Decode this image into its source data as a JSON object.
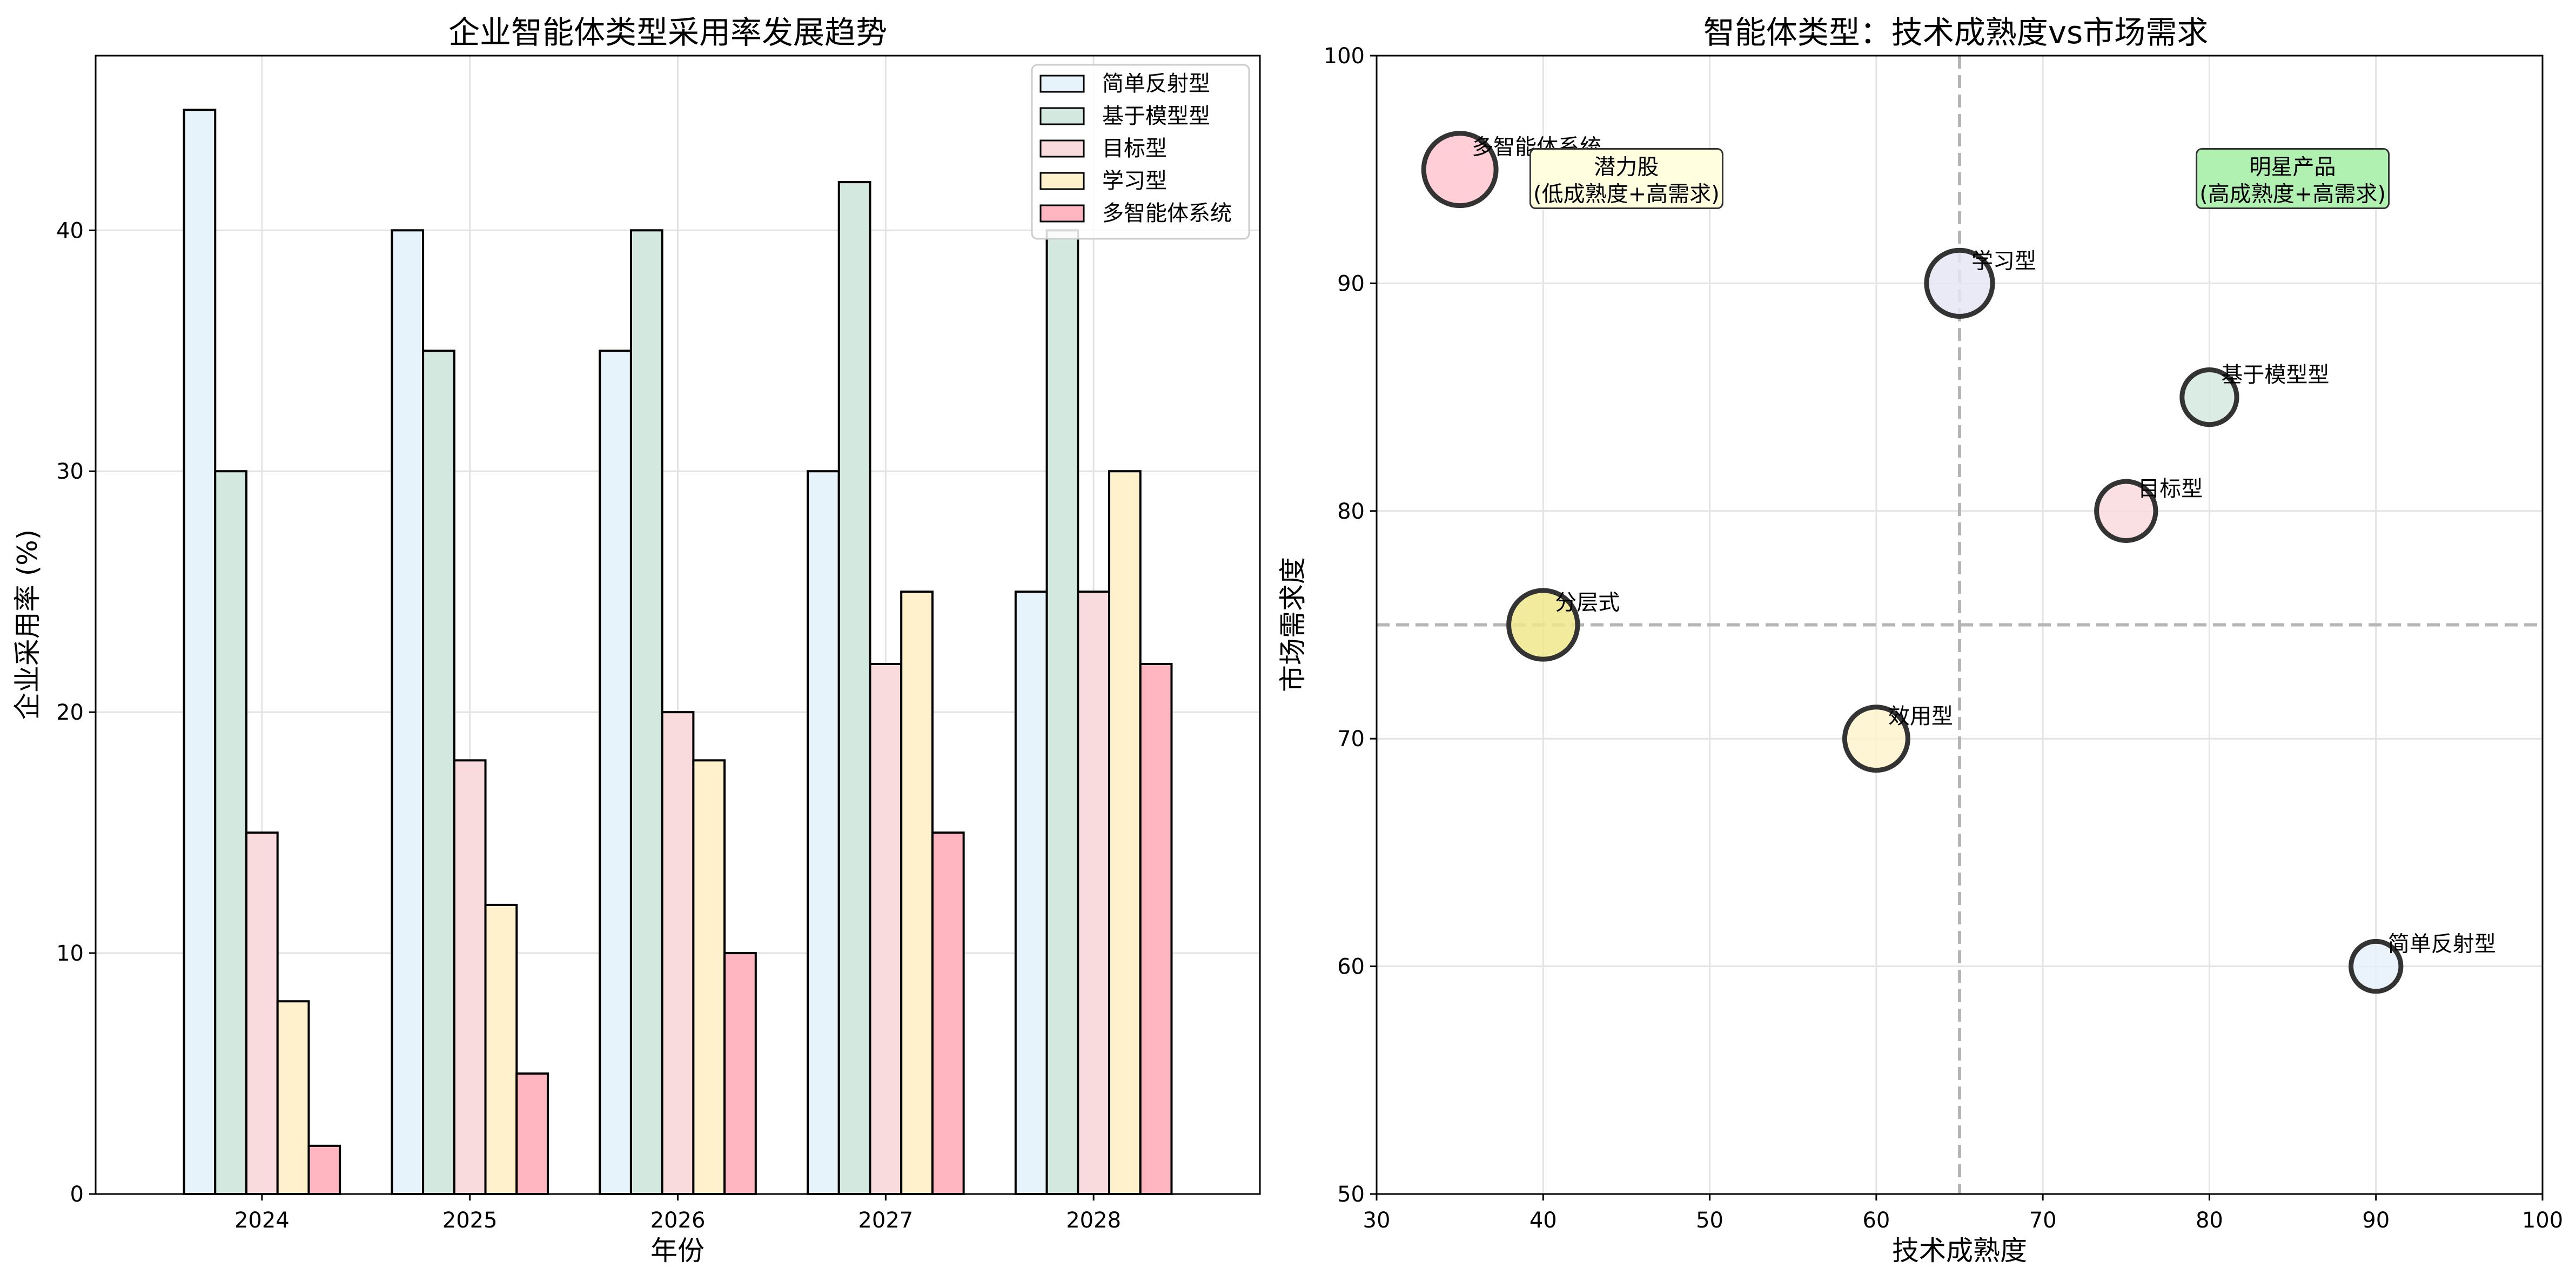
{
  "chart_data": [
    {
      "type": "bar",
      "title": "企业智能体类型采用率发展趋势",
      "xlabel": "年份",
      "ylabel": "企业采用率 (%)",
      "categories": [
        "2024",
        "2025",
        "2026",
        "2027",
        "2028"
      ],
      "ylim": [
        0,
        47.25
      ],
      "yticks": [
        0,
        10,
        20,
        30,
        40
      ],
      "grid": true,
      "legend_position": "top-right",
      "series": [
        {
          "name": "简单反射型",
          "color": "#E6F3FB",
          "values": [
            45,
            40,
            35,
            30,
            25
          ]
        },
        {
          "name": "基于模型型",
          "color": "#D3E9DF",
          "values": [
            30,
            35,
            40,
            42,
            40
          ]
        },
        {
          "name": "目标型",
          "color": "#F9DBDE",
          "values": [
            15,
            18,
            20,
            22,
            25
          ]
        },
        {
          "name": "学习型",
          "color": "#FEF1CC",
          "values": [
            8,
            12,
            18,
            25,
            30
          ]
        },
        {
          "name": "多智能体系统",
          "color": "#FFB6C1",
          "values": [
            2,
            5,
            10,
            15,
            22
          ]
        }
      ]
    },
    {
      "type": "scatter",
      "title": "智能体类型：技术成熟度vs市场需求",
      "xlabel": "技术成熟度",
      "ylabel": "市场需求度",
      "xlim": [
        30,
        100
      ],
      "ylim": [
        50,
        100
      ],
      "xticks": [
        30,
        40,
        50,
        60,
        70,
        80,
        90,
        100
      ],
      "yticks": [
        50,
        60,
        70,
        80,
        90,
        100
      ],
      "grid": true,
      "reference_lines": {
        "x": 65,
        "y": 75
      },
      "points": [
        {
          "name": "简单反射型",
          "x": 90,
          "y": 60,
          "size": 1,
          "color": "#E6F0FB"
        },
        {
          "name": "基于模型型",
          "x": 80,
          "y": 85,
          "size": 1.2,
          "color": "#D3E9DF"
        },
        {
          "name": "目标型",
          "x": 75,
          "y": 80,
          "size": 1.4,
          "color": "#F9DBDE"
        },
        {
          "name": "效用型",
          "x": 60,
          "y": 70,
          "size": 1.6,
          "color": "#FEF3CC"
        },
        {
          "name": "学习型",
          "x": 65,
          "y": 90,
          "size": 1.75,
          "color": "#E6E6F5"
        },
        {
          "name": "分层式",
          "x": 40,
          "y": 75,
          "size": 1.9,
          "color": "#F0E68C"
        },
        {
          "name": "多智能体系统",
          "x": 35,
          "y": 95,
          "size": 2.1,
          "color": "#FFC6D0"
        }
      ],
      "annotations": [
        {
          "line1": "潜力股",
          "line2": "(低成熟度+高需求)",
          "x": 45,
          "y": 94.6,
          "color": "#FFFFE0"
        },
        {
          "line1": "明星产品",
          "line2": "(高成熟度+高需求)",
          "x": 85,
          "y": 94.6,
          "color": "#B0F0B0"
        }
      ]
    }
  ]
}
